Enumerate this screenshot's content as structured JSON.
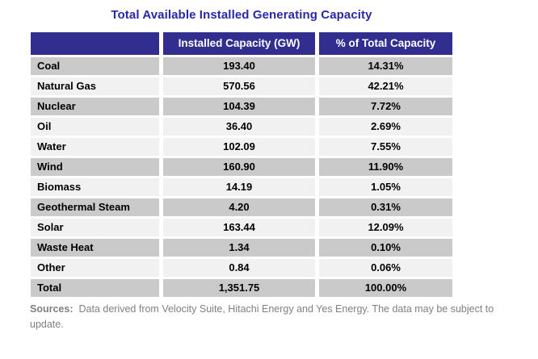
{
  "title": "Total Available Installed Generating Capacity",
  "table": {
    "columns": [
      "",
      "Installed Capacity (GW)",
      "% of Total Capacity"
    ],
    "rows": [
      {
        "label": "Coal",
        "capacity_gw": "193.40",
        "pct": "14.31%",
        "shade": "gray"
      },
      {
        "label": "Natural Gas",
        "capacity_gw": "570.56",
        "pct": "42.21%",
        "shade": "light"
      },
      {
        "label": "Nuclear",
        "capacity_gw": "104.39",
        "pct": "7.72%",
        "shade": "gray"
      },
      {
        "label": "Oil",
        "capacity_gw": "36.40",
        "pct": "2.69%",
        "shade": "light"
      },
      {
        "label": "Water",
        "capacity_gw": "102.09",
        "pct": "7.55%",
        "shade": "light"
      },
      {
        "label": "Wind",
        "capacity_gw": "160.90",
        "pct": "11.90%",
        "shade": "gray"
      },
      {
        "label": "Biomass",
        "capacity_gw": "14.19",
        "pct": "1.05%",
        "shade": "light"
      },
      {
        "label": "Geothermal Steam",
        "capacity_gw": "4.20",
        "pct": "0.31%",
        "shade": "gray"
      },
      {
        "label": "Solar",
        "capacity_gw": "163.44",
        "pct": "12.09%",
        "shade": "light"
      },
      {
        "label": "Waste Heat",
        "capacity_gw": "1.34",
        "pct": "0.10%",
        "shade": "gray"
      },
      {
        "label": "Other",
        "capacity_gw": "0.84",
        "pct": "0.06%",
        "shade": "light"
      },
      {
        "label": "Total",
        "capacity_gw": "1,351.75",
        "pct": "100.00%",
        "shade": "gray"
      }
    ]
  },
  "footer": {
    "sources_label": "Sources:",
    "sources_text": "Data derived from Velocity Suite, Hitachi Energy and Yes Energy.  The data may be subject to update."
  },
  "colors": {
    "title_text": "#2828A8",
    "header_bg": "#312E90",
    "header_text": "#FFFFFF",
    "row_gray": "#CACACA",
    "row_light": "#F1F1F1",
    "cell_text": "#000000",
    "footer_text": "#808080",
    "background": "#FFFFFF"
  },
  "chart_data": {
    "type": "table",
    "title": "Total Available Installed Generating Capacity",
    "columns": [
      "",
      "Installed Capacity (GW)",
      "% of Total Capacity"
    ],
    "categories": [
      "Coal",
      "Natural Gas",
      "Nuclear",
      "Oil",
      "Water",
      "Wind",
      "Biomass",
      "Geothermal Steam",
      "Solar",
      "Waste Heat",
      "Other",
      "Total"
    ],
    "series": [
      {
        "name": "Installed Capacity (GW)",
        "values": [
          193.4,
          570.56,
          104.39,
          36.4,
          102.09,
          160.9,
          14.19,
          4.2,
          163.44,
          1.34,
          0.84,
          1351.75
        ]
      },
      {
        "name": "% of Total Capacity",
        "values": [
          14.31,
          42.21,
          7.72,
          2.69,
          7.55,
          11.9,
          1.05,
          0.31,
          12.09,
          0.1,
          0.06,
          100.0
        ]
      }
    ],
    "notes": "Sources: Data derived from Velocity Suite, Hitachi Energy and Yes Energy. The data may be subject to update."
  }
}
